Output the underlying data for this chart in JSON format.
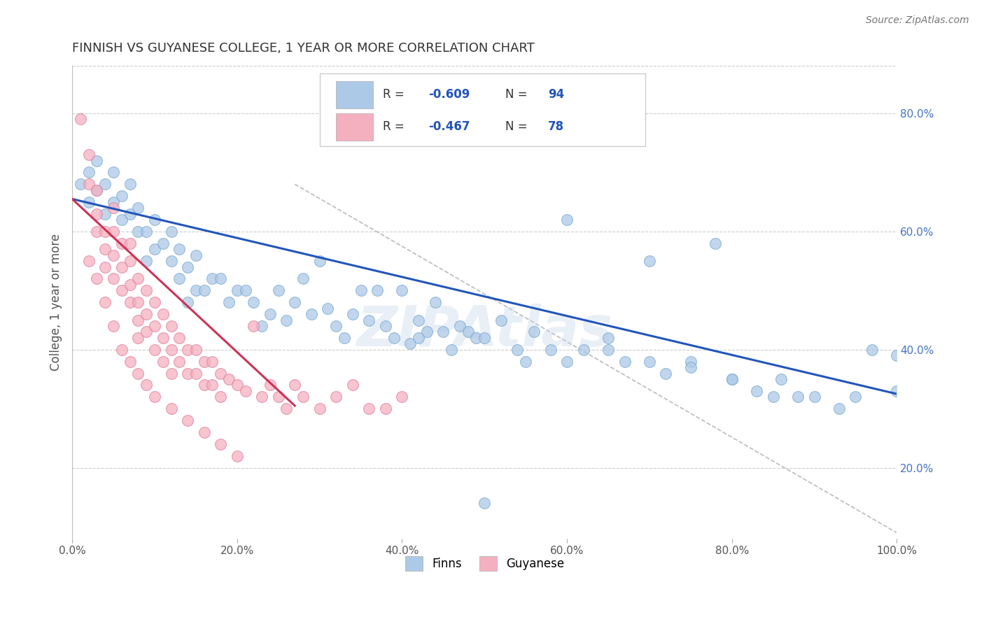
{
  "title": "FINNISH VS GUYANESE COLLEGE, 1 YEAR OR MORE CORRELATION CHART",
  "source_text": "Source: ZipAtlas.com",
  "ylabel": "College, 1 year or more",
  "xlim": [
    0.0,
    1.0
  ],
  "ylim": [
    0.08,
    0.88
  ],
  "xticks": [
    0.0,
    0.2,
    0.4,
    0.6,
    0.8,
    1.0
  ],
  "xtick_labels": [
    "0.0%",
    "20.0%",
    "40.0%",
    "60.0%",
    "80.0%",
    "100.0%"
  ],
  "ytick_positions": [
    0.2,
    0.4,
    0.6,
    0.8
  ],
  "ytick_labels": [
    "20.0%",
    "40.0%",
    "60.0%",
    "80.0%"
  ],
  "blue_color": "#adc9e8",
  "pink_color": "#f5b0c0",
  "blue_edge_color": "#7aaad0",
  "pink_edge_color": "#e080a0",
  "blue_line_color": "#2255bb",
  "pink_line_color": "#cc3355",
  "legend_blue_fill": "#adc9e8",
  "legend_pink_fill": "#f5b0c0",
  "R_blue": -0.609,
  "N_blue": 94,
  "R_pink": -0.467,
  "N_pink": 78,
  "watermark": "ZIPAtlas",
  "grid_color": "#cccccc",
  "background_color": "#ffffff",
  "title_color": "#333333",
  "blue_line_x": [
    0.0,
    1.0
  ],
  "blue_line_y": [
    0.655,
    0.325
  ],
  "pink_line_x": [
    0.0,
    0.27
  ],
  "pink_line_y": [
    0.655,
    0.305
  ],
  "diag_line_x": [
    0.27,
    1.0
  ],
  "diag_line_y": [
    0.68,
    0.09
  ],
  "blue_scatter_x": [
    0.01,
    0.02,
    0.02,
    0.03,
    0.03,
    0.04,
    0.04,
    0.05,
    0.05,
    0.06,
    0.06,
    0.07,
    0.07,
    0.08,
    0.08,
    0.09,
    0.09,
    0.1,
    0.1,
    0.11,
    0.12,
    0.12,
    0.13,
    0.13,
    0.14,
    0.14,
    0.15,
    0.15,
    0.16,
    0.17,
    0.18,
    0.19,
    0.2,
    0.21,
    0.22,
    0.23,
    0.24,
    0.25,
    0.26,
    0.27,
    0.28,
    0.29,
    0.3,
    0.31,
    0.32,
    0.33,
    0.34,
    0.35,
    0.36,
    0.37,
    0.38,
    0.39,
    0.4,
    0.41,
    0.42,
    0.43,
    0.44,
    0.45,
    0.46,
    0.47,
    0.48,
    0.49,
    0.5,
    0.52,
    0.54,
    0.56,
    0.58,
    0.6,
    0.62,
    0.65,
    0.67,
    0.7,
    0.72,
    0.75,
    0.78,
    0.8,
    0.83,
    0.86,
    0.88,
    0.9,
    0.93,
    0.95,
    0.97,
    1.0,
    0.5,
    0.42,
    0.55,
    0.6,
    0.65,
    0.7,
    0.75,
    0.8,
    0.85,
    1.0
  ],
  "blue_scatter_y": [
    0.68,
    0.7,
    0.65,
    0.72,
    0.67,
    0.68,
    0.63,
    0.65,
    0.7,
    0.66,
    0.62,
    0.63,
    0.68,
    0.6,
    0.64,
    0.6,
    0.55,
    0.62,
    0.57,
    0.58,
    0.55,
    0.6,
    0.52,
    0.57,
    0.54,
    0.48,
    0.5,
    0.56,
    0.5,
    0.52,
    0.52,
    0.48,
    0.5,
    0.5,
    0.48,
    0.44,
    0.46,
    0.5,
    0.45,
    0.48,
    0.52,
    0.46,
    0.55,
    0.47,
    0.44,
    0.42,
    0.46,
    0.5,
    0.45,
    0.5,
    0.44,
    0.42,
    0.5,
    0.41,
    0.45,
    0.43,
    0.48,
    0.43,
    0.4,
    0.44,
    0.43,
    0.42,
    0.42,
    0.45,
    0.4,
    0.43,
    0.4,
    0.62,
    0.4,
    0.4,
    0.38,
    0.55,
    0.36,
    0.38,
    0.58,
    0.35,
    0.33,
    0.35,
    0.32,
    0.32,
    0.3,
    0.32,
    0.4,
    0.33,
    0.14,
    0.42,
    0.38,
    0.38,
    0.42,
    0.38,
    0.37,
    0.35,
    0.32,
    0.39
  ],
  "pink_scatter_x": [
    0.01,
    0.02,
    0.02,
    0.03,
    0.03,
    0.03,
    0.04,
    0.04,
    0.04,
    0.05,
    0.05,
    0.05,
    0.05,
    0.06,
    0.06,
    0.06,
    0.07,
    0.07,
    0.07,
    0.07,
    0.08,
    0.08,
    0.08,
    0.08,
    0.09,
    0.09,
    0.09,
    0.1,
    0.1,
    0.1,
    0.11,
    0.11,
    0.11,
    0.12,
    0.12,
    0.12,
    0.13,
    0.13,
    0.14,
    0.14,
    0.15,
    0.15,
    0.16,
    0.16,
    0.17,
    0.17,
    0.18,
    0.18,
    0.19,
    0.2,
    0.21,
    0.22,
    0.23,
    0.24,
    0.25,
    0.26,
    0.27,
    0.28,
    0.3,
    0.32,
    0.34,
    0.36,
    0.38,
    0.4,
    0.02,
    0.03,
    0.04,
    0.05,
    0.06,
    0.07,
    0.08,
    0.09,
    0.1,
    0.12,
    0.14,
    0.16,
    0.18,
    0.2
  ],
  "pink_scatter_y": [
    0.79,
    0.73,
    0.68,
    0.67,
    0.63,
    0.6,
    0.6,
    0.57,
    0.54,
    0.64,
    0.6,
    0.56,
    0.52,
    0.58,
    0.54,
    0.5,
    0.55,
    0.51,
    0.48,
    0.58,
    0.52,
    0.48,
    0.45,
    0.42,
    0.5,
    0.46,
    0.43,
    0.48,
    0.44,
    0.4,
    0.46,
    0.42,
    0.38,
    0.44,
    0.4,
    0.36,
    0.42,
    0.38,
    0.4,
    0.36,
    0.4,
    0.36,
    0.38,
    0.34,
    0.38,
    0.34,
    0.36,
    0.32,
    0.35,
    0.34,
    0.33,
    0.44,
    0.32,
    0.34,
    0.32,
    0.3,
    0.34,
    0.32,
    0.3,
    0.32,
    0.34,
    0.3,
    0.3,
    0.32,
    0.55,
    0.52,
    0.48,
    0.44,
    0.4,
    0.38,
    0.36,
    0.34,
    0.32,
    0.3,
    0.28,
    0.26,
    0.24,
    0.22
  ]
}
